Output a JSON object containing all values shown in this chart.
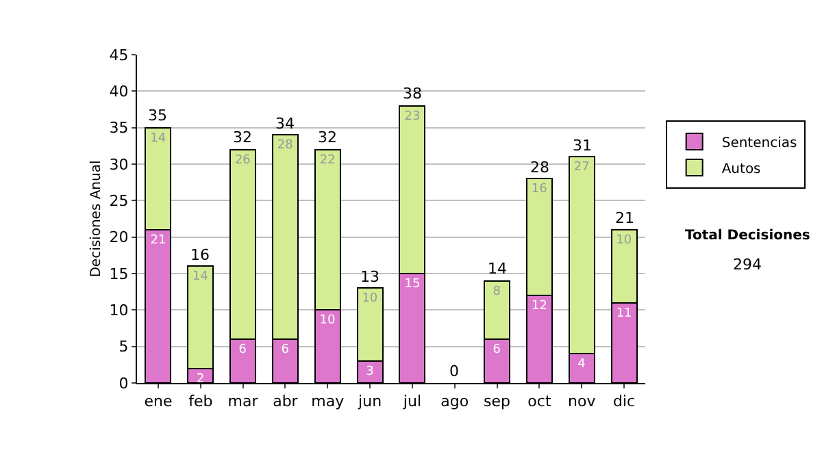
{
  "chart_data": {
    "type": "bar",
    "stacked": true,
    "ylabel": "Decisiones Anual",
    "categories": [
      "ene",
      "feb",
      "mar",
      "abr",
      "may",
      "jun",
      "jul",
      "ago",
      "sep",
      "oct",
      "nov",
      "dic"
    ],
    "series": [
      {
        "name": "Sentencias",
        "color": "#dd77cc",
        "values": [
          21,
          2,
          6,
          6,
          10,
          3,
          15,
          0,
          6,
          12,
          4,
          11
        ],
        "value_labels": [
          "21",
          "2",
          "6",
          "6",
          "10",
          "3",
          "15",
          null,
          "6",
          "12",
          "4",
          "11"
        ]
      },
      {
        "name": "Autos",
        "color": "#d4ec94",
        "values": [
          14,
          14,
          26,
          28,
          22,
          10,
          23,
          0,
          8,
          16,
          27,
          10
        ],
        "value_labels": [
          "14",
          "14",
          "26",
          "28",
          "22",
          "10",
          "23",
          null,
          "8",
          "16",
          "27",
          "10"
        ]
      }
    ],
    "totals": [
      "35",
      "16",
      "32",
      "34",
      "32",
      "13",
      "38",
      "0",
      "14",
      "28",
      "31",
      "21"
    ],
    "ylim": [
      0,
      45
    ],
    "yticks": [
      0,
      5,
      10,
      15,
      20,
      25,
      30,
      35,
      40,
      45
    ],
    "grid": "y",
    "legend": "right",
    "annotations": [
      "Total Decisiones",
      "294"
    ]
  }
}
